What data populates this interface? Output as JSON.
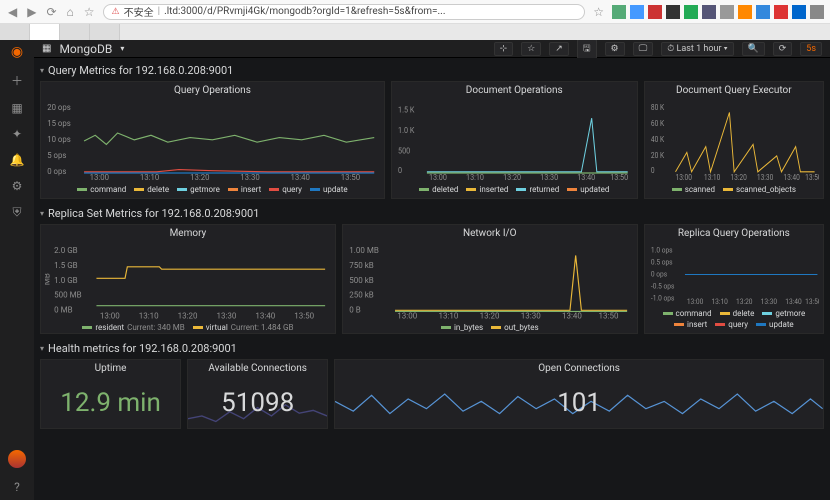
{
  "browser": {
    "url_insecure_label": "不安全",
    "url": ".ltd:3000/d/PRvmji4Gk/mongodb?orgId=1&refresh=5s&from=...",
    "star_icon": "☆"
  },
  "dashboard": {
    "title": "MongoDB",
    "time_range": "Last 1 hour",
    "refresh": "5s"
  },
  "rows": {
    "query_metrics": "Query Metrics for 192.168.0.208:9001",
    "replica_metrics": "Replica Set Metrics for 192.168.0.208:9001",
    "health_metrics": "Health metrics for 192.168.0.208:9001"
  },
  "panels": {
    "query_ops": {
      "title": "Query Operations",
      "y_labels": [
        "20 ops",
        "15 ops",
        "10 ops",
        "5 ops",
        "0 ops"
      ],
      "x_labels": [
        "13:00",
        "13:10",
        "13:20",
        "13:30",
        "13:40",
        "13:50"
      ],
      "series": [
        {
          "name": "command",
          "color": "#7eb26d"
        },
        {
          "name": "delete",
          "color": "#eab839"
        },
        {
          "name": "getmore",
          "color": "#6ed0e0"
        },
        {
          "name": "insert",
          "color": "#ef843c"
        },
        {
          "name": "query",
          "color": "#e24d42"
        },
        {
          "name": "update",
          "color": "#1f78c1"
        }
      ]
    },
    "doc_ops": {
      "title": "Document Operations",
      "y_labels": [
        "1.5 K",
        "1.0 K",
        "500",
        "0"
      ],
      "x_labels": [
        "13:00",
        "13:10",
        "13:20",
        "13:30",
        "13:40",
        "13:50"
      ],
      "series": [
        {
          "name": "deleted",
          "color": "#7eb26d"
        },
        {
          "name": "inserted",
          "color": "#eab839"
        },
        {
          "name": "returned",
          "color": "#6ed0e0"
        },
        {
          "name": "updated",
          "color": "#ef843c"
        }
      ]
    },
    "doc_exec": {
      "title": "Document Query Executor",
      "y_labels": [
        "80 K",
        "60 K",
        "40 K",
        "20 K",
        "0"
      ],
      "x_labels": [
        "13:00",
        "13:10",
        "13:20",
        "13:30",
        "13:40",
        "13:50"
      ],
      "series": [
        {
          "name": "scanned",
          "color": "#7eb26d"
        },
        {
          "name": "scanned_objects",
          "color": "#eab839"
        }
      ]
    },
    "memory": {
      "title": "Memory",
      "y_labels": [
        "2.0 GB",
        "1.5 GB",
        "1.0 GB",
        "500 MB",
        "0 MB"
      ],
      "y_axis_label": "MB",
      "x_labels": [
        "13:00",
        "13:10",
        "13:20",
        "13:30",
        "13:40",
        "13:50"
      ],
      "series": [
        {
          "name": "resident",
          "color": "#7eb26d",
          "current_label": "Current:",
          "current": "340 MB"
        },
        {
          "name": "virtual",
          "color": "#eab839",
          "current_label": "Current:",
          "current": "1.484 GB"
        }
      ]
    },
    "netio": {
      "title": "Network I/O",
      "y_labels": [
        "1.00 MB",
        "750 kB",
        "500 kB",
        "250 kB",
        "0 B"
      ],
      "x_labels": [
        "13:00",
        "13:10",
        "13:20",
        "13:30",
        "13:40",
        "13:50"
      ],
      "series": [
        {
          "name": "in_bytes",
          "color": "#7eb26d"
        },
        {
          "name": "out_bytes",
          "color": "#eab839"
        }
      ]
    },
    "replica_ops": {
      "title": "Replica Query Operations",
      "y_labels": [
        "1.0 ops",
        "0.5 ops",
        "0 ops",
        "-0.5 ops",
        "-1.0 ops"
      ],
      "x_labels": [
        "13:00",
        "13:10",
        "13:20",
        "13:30",
        "13:40",
        "13:50"
      ],
      "series": [
        {
          "name": "command",
          "color": "#7eb26d"
        },
        {
          "name": "delete",
          "color": "#eab839"
        },
        {
          "name": "getmore",
          "color": "#6ed0e0"
        },
        {
          "name": "insert",
          "color": "#ef843c"
        },
        {
          "name": "query",
          "color": "#e24d42"
        },
        {
          "name": "update",
          "color": "#1f78c1"
        }
      ]
    },
    "uptime": {
      "title": "Uptime",
      "value": "12.9 min",
      "color": "#7eb26d"
    },
    "avail_conn": {
      "title": "Available Connections",
      "value": "51098",
      "color": "#d8d9da"
    },
    "open_conn": {
      "title": "Open Connections",
      "value": "101",
      "color": "#d8d9da"
    }
  },
  "footer_url": "https://blog.csdn.net/ab601026460"
}
